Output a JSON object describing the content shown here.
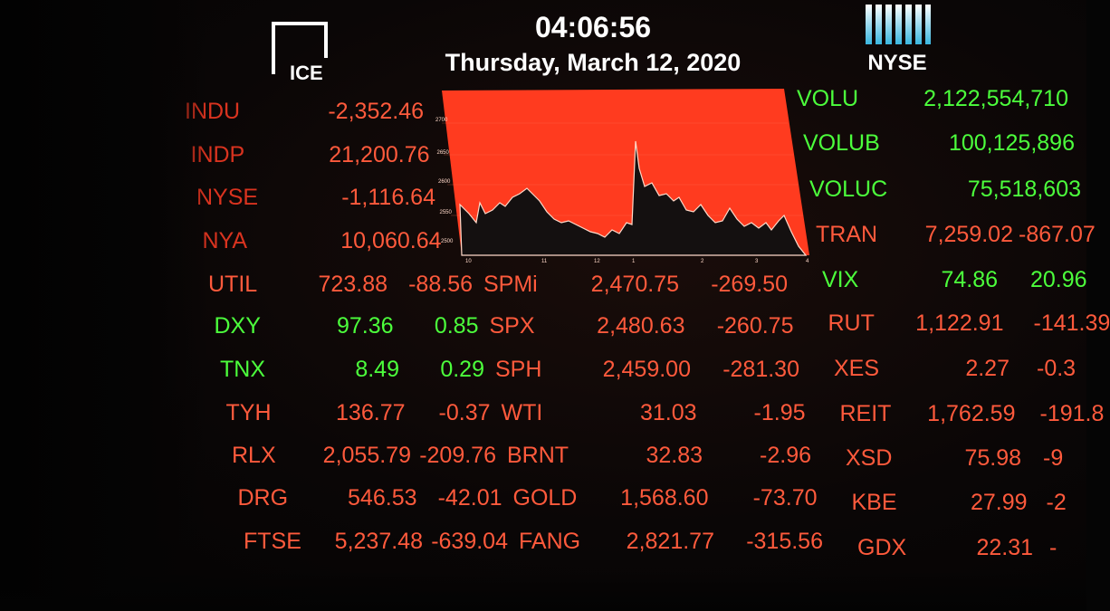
{
  "header": {
    "time": "04:06:56",
    "date": "Thursday, March 12, 2020",
    "ice_logo_text": "ICE",
    "nyse_logo_text": "NYSE"
  },
  "colors": {
    "down": "#ff5a3c",
    "up": "#4cff3c",
    "chart_fill": "#ff3b1f",
    "background": "#050505"
  },
  "chart": {
    "y_ticks": [
      "2700",
      "2650",
      "2600",
      "2550",
      "2500"
    ],
    "x_ticks": [
      "10",
      "11",
      "12",
      "1",
      "2",
      "3",
      "4"
    ]
  },
  "left_rows": [
    {
      "sym": "INDU",
      "val": "-2,352.46",
      "chg": "",
      "color": "rd"
    },
    {
      "sym": "INDP",
      "val": "21,200.76",
      "chg": "",
      "color": "rd"
    },
    {
      "sym": "NYSE",
      "val": "-1,116.64",
      "chg": "",
      "color": "rd"
    },
    {
      "sym": "NYA",
      "val": "10,060.64",
      "chg": "",
      "color": "rd"
    },
    {
      "sym": "UTIL",
      "val": "723.88",
      "chg": "-88.56",
      "color": "r"
    },
    {
      "sym": "DXY",
      "val": "97.36",
      "chg": "0.85",
      "color": "g"
    },
    {
      "sym": "TNX",
      "val": "8.49",
      "chg": "0.29",
      "color": "g"
    },
    {
      "sym": "TYH",
      "val": "136.77",
      "chg": "-0.37",
      "color": "r"
    },
    {
      "sym": "RLX",
      "val": "2,055.79",
      "chg": "-209.76",
      "color": "r"
    },
    {
      "sym": "DRG",
      "val": "546.53",
      "chg": "-42.01",
      "color": "r"
    },
    {
      "sym": "FTSE",
      "val": "5,237.48",
      "chg": "-639.04",
      "color": "r"
    }
  ],
  "mid_rows": [
    {
      "sym": "SPMi",
      "val": "2,470.75",
      "chg": "-269.50"
    },
    {
      "sym": "SPX",
      "val": "2,480.63",
      "chg": "-260.75"
    },
    {
      "sym": "SPH",
      "val": "2,459.00",
      "chg": "-281.30"
    },
    {
      "sym": "WTI",
      "val": "31.03",
      "chg": "-1.95"
    },
    {
      "sym": "BRNT",
      "val": "32.83",
      "chg": "-2.96"
    },
    {
      "sym": "GOLD",
      "val": "1,568.60",
      "chg": "-73.70"
    },
    {
      "sym": "FANG",
      "val": "2,821.77",
      "chg": "-315.56"
    }
  ],
  "right_top": [
    {
      "sym": "VOLU",
      "val": "2,122,554,710",
      "chg": "",
      "color": "g"
    },
    {
      "sym": "VOLUB",
      "val": "100,125,896",
      "chg": "",
      "color": "g"
    },
    {
      "sym": "VOLUC",
      "val": "75,518,603",
      "chg": "",
      "color": "g"
    },
    {
      "sym": "TRAN",
      "val": "7,259.02",
      "chg": "-867.07",
      "color": "r"
    }
  ],
  "right_rows": [
    {
      "sym": "VIX",
      "val": "74.86",
      "chg": "20.96",
      "color": "g"
    },
    {
      "sym": "RUT",
      "val": "1,122.91",
      "chg": "-141.39",
      "color": "r"
    },
    {
      "sym": "XES",
      "val": "2.27",
      "chg": "-0.3",
      "color": "r"
    },
    {
      "sym": "REIT",
      "val": "1,762.59",
      "chg": "-191.8",
      "color": "r"
    },
    {
      "sym": "XSD",
      "val": "75.98",
      "chg": "-9",
      "color": "r"
    },
    {
      "sym": "KBE",
      "val": "27.99",
      "chg": "-2",
      "color": "r"
    },
    {
      "sym": "GDX",
      "val": "22.31",
      "chg": "-",
      "color": "r"
    }
  ]
}
